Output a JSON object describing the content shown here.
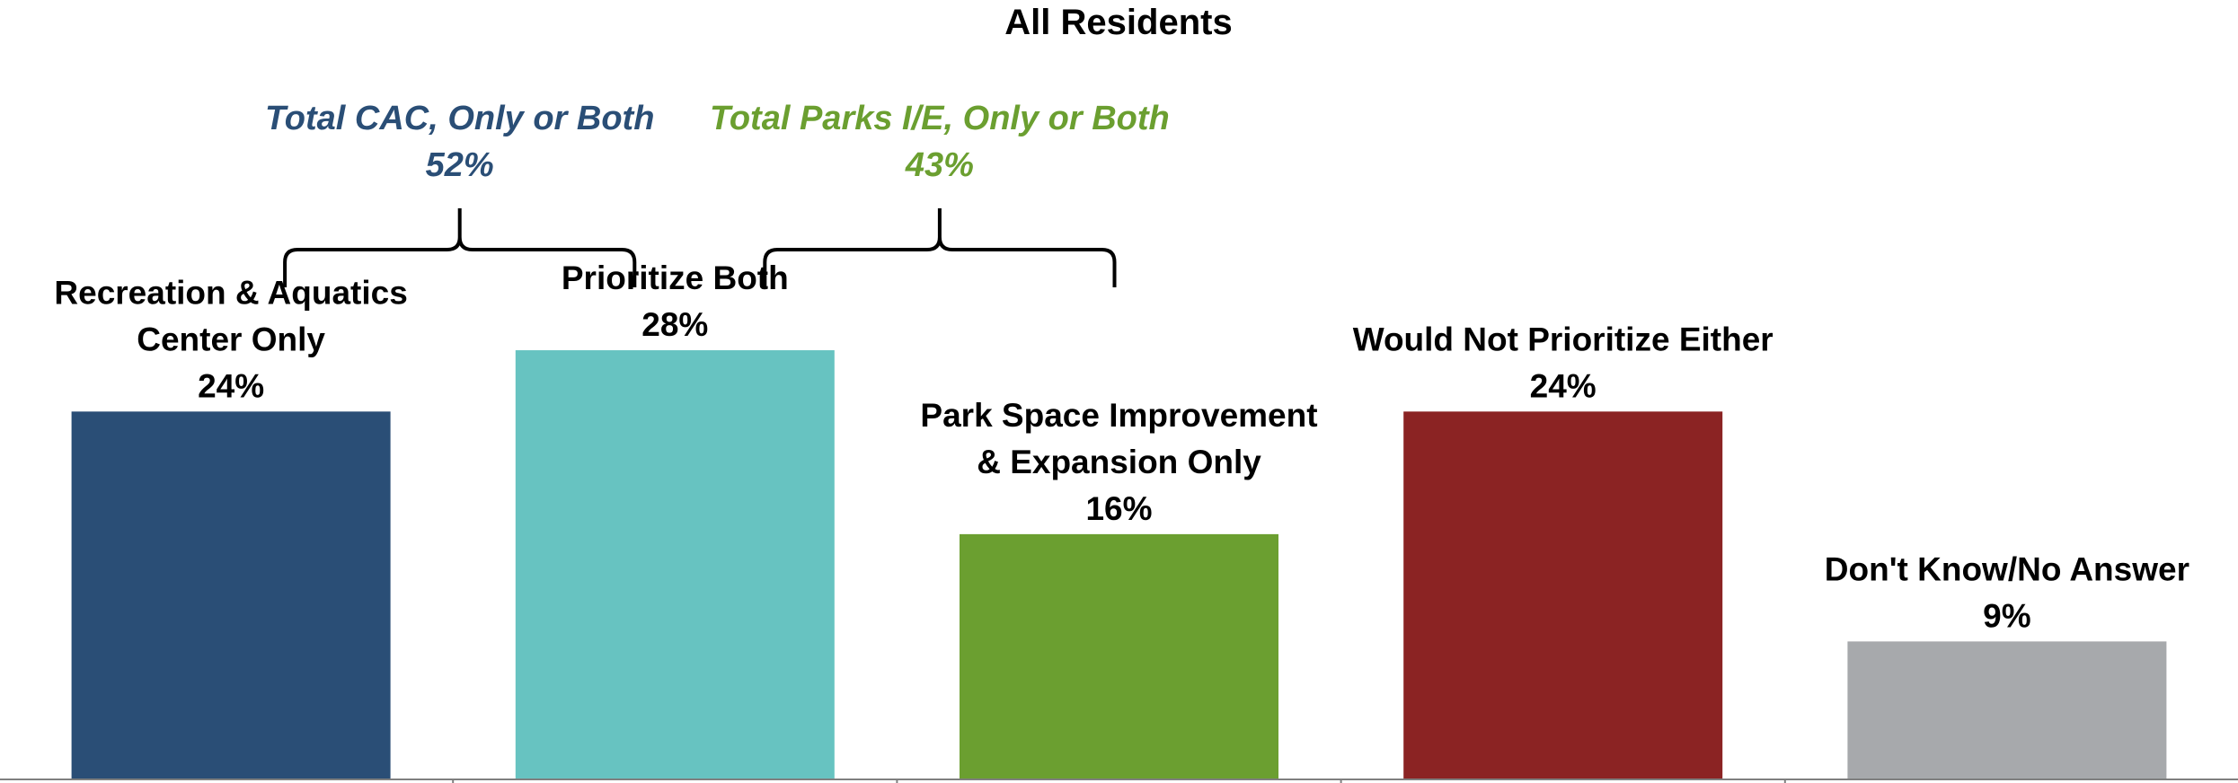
{
  "chart_data": {
    "type": "bar",
    "title": "All Residents",
    "categories": [
      [
        "Recreation & Aquatics",
        "Center Only"
      ],
      [
        "Prioritize Both"
      ],
      [
        "Park Space Improvement",
        "& Expansion Only"
      ],
      [
        "Would Not Prioritize Either"
      ],
      [
        "Don't Know/No Answer"
      ]
    ],
    "values": [
      24,
      28,
      16,
      24,
      9
    ],
    "value_labels": [
      "24%",
      "28%",
      "16%",
      "24%",
      "9%"
    ],
    "colors": [
      "#2A4E76",
      "#67C3C1",
      "#6B9F30",
      "#8B2323",
      "#A7A9AC"
    ],
    "ylim": [
      0,
      30
    ],
    "grid": false,
    "legend": "none",
    "groups": [
      {
        "label": "Total CAC, Only or Both",
        "value": "52%",
        "color": "#2A4E76",
        "bars": [
          0,
          1
        ]
      },
      {
        "label": "Total Parks I/E, Only or Both",
        "value": "43%",
        "color": "#6B9F30",
        "bars": [
          1,
          2
        ]
      }
    ]
  }
}
